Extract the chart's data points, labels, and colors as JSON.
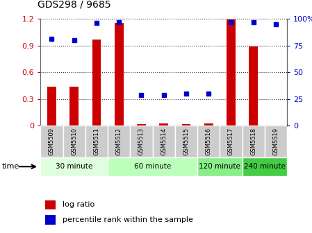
{
  "title": "GDS298 / 9685",
  "samples": [
    "GSM5509",
    "GSM5510",
    "GSM5511",
    "GSM5512",
    "GSM5513",
    "GSM5514",
    "GSM5515",
    "GSM5516",
    "GSM5517",
    "GSM5518",
    "GSM5519"
  ],
  "log_ratio": [
    0.44,
    0.44,
    0.97,
    1.15,
    0.02,
    0.03,
    0.02,
    0.03,
    1.19,
    0.89,
    0.0
  ],
  "percentile_rank": [
    81,
    80,
    96,
    97,
    29,
    29,
    30,
    30,
    97,
    97,
    95
  ],
  "bar_color": "#cc0000",
  "dot_color": "#0000cc",
  "ylim_left": [
    0,
    1.2
  ],
  "ylim_right": [
    0,
    100
  ],
  "yticks_left": [
    0,
    0.3,
    0.6,
    0.9,
    1.2
  ],
  "ytick_labels_left": [
    "0",
    "0.3",
    "0.6",
    "0.9",
    "1.2"
  ],
  "yticks_right": [
    0,
    25,
    50,
    75,
    100
  ],
  "ytick_labels_right": [
    "0",
    "25",
    "50",
    "75",
    "100%"
  ],
  "groups": [
    {
      "label": "30 minute",
      "start": 0,
      "end": 3,
      "color": "#ddffdd"
    },
    {
      "label": "60 minute",
      "start": 3,
      "end": 7,
      "color": "#bbffbb"
    },
    {
      "label": "120 minute",
      "start": 7,
      "end": 9,
      "color": "#88ee88"
    },
    {
      "label": "240 minute",
      "start": 9,
      "end": 11,
      "color": "#44cc44"
    }
  ],
  "time_label": "time",
  "legend_log_ratio": "log ratio",
  "legend_percentile": "percentile rank within the sample",
  "grid_color": "#333333",
  "bg_color": "#ffffff",
  "tick_label_color_left": "#cc0000",
  "tick_label_color_right": "#0000cc",
  "label_box_color": "#cccccc",
  "bar_width": 0.4
}
